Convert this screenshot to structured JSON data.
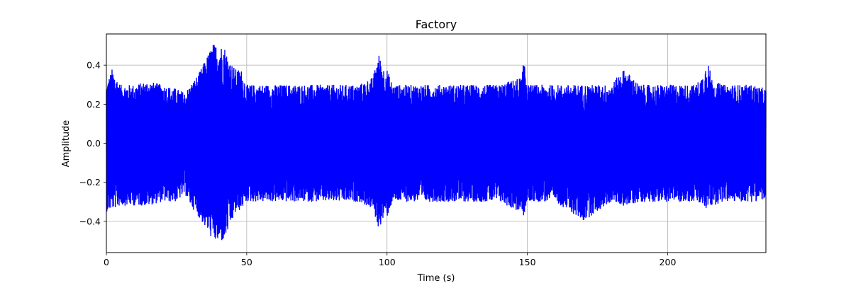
{
  "chart_data": {
    "type": "line",
    "title": "Factory",
    "xlabel": "Time (s)",
    "ylabel": "Amplitude",
    "xlim": [
      0,
      235
    ],
    "ylim": [
      -0.56,
      0.56
    ],
    "xticks": [
      0,
      50,
      100,
      150,
      200
    ],
    "xtick_labels": [
      "0",
      "50",
      "100",
      "150",
      "200"
    ],
    "yticks": [
      -0.4,
      -0.2,
      0.0,
      0.2,
      0.4
    ],
    "ytick_labels": [
      "−0.4",
      "−0.2",
      "0.0",
      "0.2",
      "0.4"
    ],
    "grid": true,
    "series": [
      {
        "color": "#0000ff",
        "envelope_time": [
          0,
          2,
          5,
          10,
          15,
          20,
          25,
          28,
          30,
          33,
          36,
          38,
          40,
          42,
          44,
          46,
          48,
          50,
          55,
          60,
          70,
          80,
          90,
          95,
          97,
          99,
          100,
          102,
          105,
          110,
          120,
          130,
          140,
          148,
          149,
          150,
          160,
          170,
          180,
          184,
          186,
          190,
          200,
          210,
          213,
          214,
          216,
          220,
          230,
          235
        ],
        "envelope_upper": [
          0.3,
          0.38,
          0.3,
          0.3,
          0.32,
          0.3,
          0.28,
          0.26,
          0.3,
          0.36,
          0.45,
          0.51,
          0.5,
          0.5,
          0.42,
          0.38,
          0.38,
          0.3,
          0.3,
          0.3,
          0.3,
          0.3,
          0.3,
          0.34,
          0.46,
          0.38,
          0.38,
          0.3,
          0.3,
          0.3,
          0.3,
          0.3,
          0.3,
          0.34,
          0.46,
          0.3,
          0.3,
          0.3,
          0.3,
          0.38,
          0.36,
          0.3,
          0.3,
          0.3,
          0.36,
          0.44,
          0.32,
          0.3,
          0.3,
          0.28
        ],
        "envelope_lower": [
          -0.35,
          -0.34,
          -0.32,
          -0.32,
          -0.32,
          -0.3,
          -0.3,
          -0.26,
          -0.32,
          -0.38,
          -0.45,
          -0.5,
          -0.51,
          -0.5,
          -0.43,
          -0.36,
          -0.34,
          -0.3,
          -0.3,
          -0.3,
          -0.3,
          -0.3,
          -0.3,
          -0.34,
          -0.44,
          -0.38,
          -0.38,
          -0.3,
          -0.3,
          -0.3,
          -0.3,
          -0.3,
          -0.3,
          -0.36,
          -0.38,
          -0.3,
          -0.3,
          -0.4,
          -0.3,
          -0.32,
          -0.32,
          -0.3,
          -0.3,
          -0.3,
          -0.33,
          -0.34,
          -0.32,
          -0.3,
          -0.3,
          -0.29
        ]
      }
    ]
  }
}
